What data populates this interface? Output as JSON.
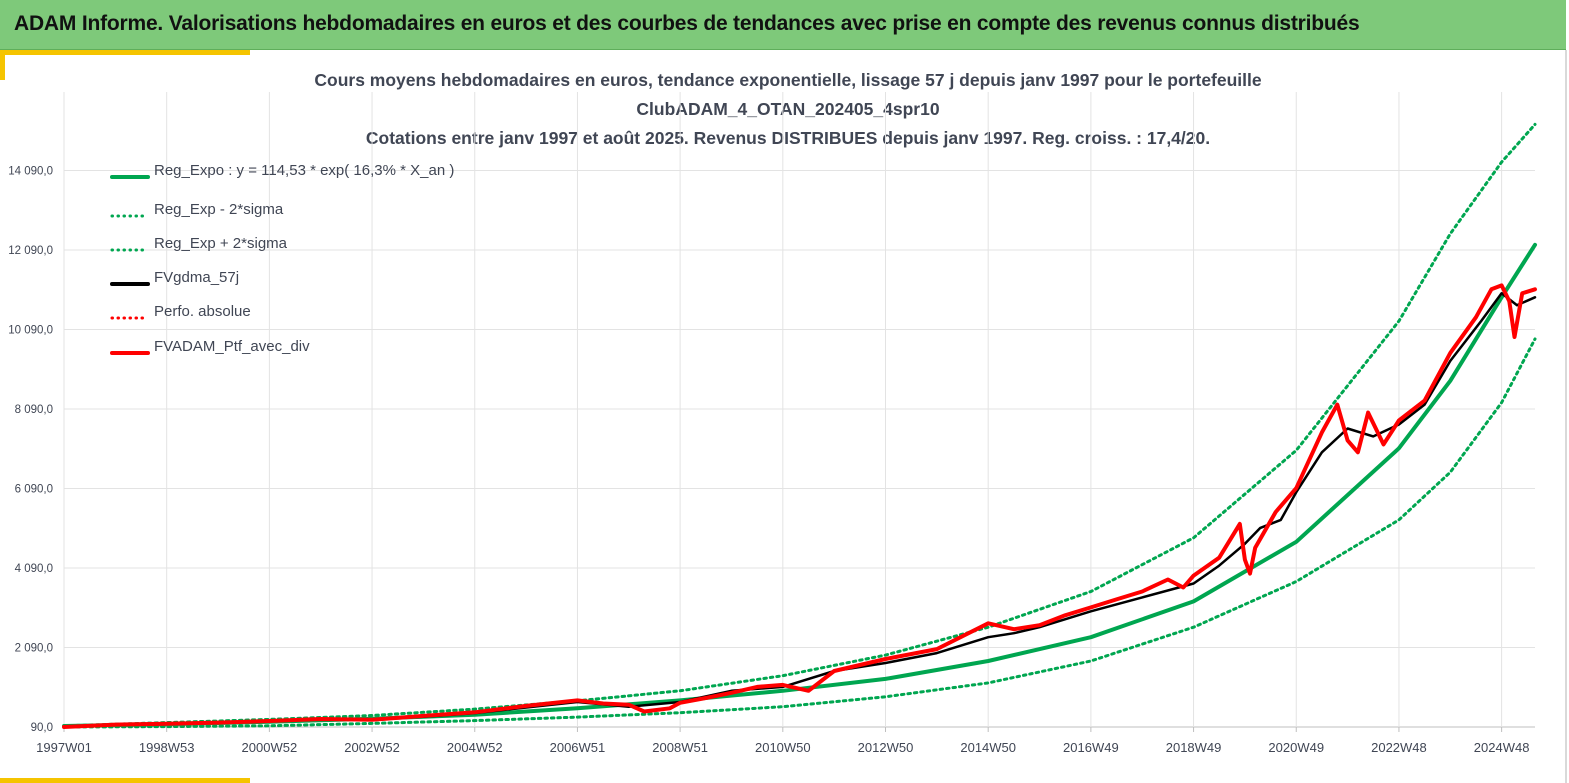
{
  "banner": {
    "title": "ADAM Informe. Valorisations hebdomadaires en euros et des courbes de tendances avec prise en compte des revenus connus distribués"
  },
  "colors": {
    "banner_bg": "#7ec97a",
    "accent": "#f5c400",
    "regression": "#00a650",
    "smoothed": "#000000",
    "portfolio": "#ff0000"
  },
  "chart_data": {
    "type": "line",
    "title_lines": [
      "Cours moyens hebdomadaires  en euros, tendance exponentielle, lissage 57 j depuis janv 1997 pour le portefeuille",
      "ClubADAM_4_OTAN_202405_4spr10",
      "Cotations  entre janv 1997 et août  2025. Revenus DISTRIBUES depuis janv 1997. Reg. croiss. : 17,4/20."
    ],
    "x_tick_labels": [
      "1997W01",
      "1998W53",
      "2000W52",
      "2002W52",
      "2004W52",
      "2006W51",
      "2008W51",
      "2010W50",
      "2012W50",
      "2014W50",
      "2016W49",
      "2018W49",
      "2020W49",
      "2022W48",
      "2024W48"
    ],
    "x_tick_years": [
      1997.0,
      1999.0,
      2001.0,
      2003.0,
      2005.0,
      2007.0,
      2009.0,
      2011.0,
      2013.0,
      2015.0,
      2017.0,
      2019.0,
      2021.0,
      2023.0,
      2025.0
    ],
    "xlim": [
      1997.0,
      2025.65
    ],
    "y_tick_labels": [
      "90,0",
      "2 090,0",
      "4 090,0",
      "6 090,0",
      "8 090,0",
      "10 090,0",
      "12 090,0",
      "14 090,0"
    ],
    "y_tick_values": [
      90,
      2090,
      4090,
      6090,
      8090,
      10090,
      12090,
      14090
    ],
    "ylim": [
      90,
      15000
    ],
    "grid": true,
    "legend_position": "top-left",
    "legend": [
      {
        "label": "Reg_Expo : y = 114,53 * exp( 16,3% *  X_an )",
        "color": "#00a650",
        "style": "solid"
      },
      {
        "label": "Reg_Exp - 2*sigma",
        "color": "#00a650",
        "style": "dotted"
      },
      {
        "label": "Reg_Exp + 2*sigma",
        "color": "#00a650",
        "style": "dotted"
      },
      {
        "label": "FVgdma_57j",
        "color": "#000000",
        "style": "solid"
      },
      {
        "label": "Perfo. absolue",
        "color": "#ff0000",
        "style": "dotted"
      },
      {
        "label": "FVADAM_Ptf_avec_div",
        "color": "#ff0000",
        "style": "solid"
      }
    ],
    "series": [
      {
        "name": "Reg_Expo : y = 114,53 * exp( 16,3% *  X_an )",
        "color": "#00a650",
        "style": "solid",
        "width": 4,
        "x": [
          1997,
          1999,
          2001,
          2003,
          2005,
          2007,
          2009,
          2011,
          2013,
          2015,
          2017,
          2019,
          2021,
          2023,
          2024,
          2025,
          2025.65
        ],
        "y": [
          115,
          160,
          220,
          300,
          400,
          560,
          760,
          1000,
          1300,
          1750,
          2350,
          3250,
          4750,
          7100,
          8800,
          10900,
          12220
        ]
      },
      {
        "name": "Reg_Exp - 2*sigma",
        "color": "#00a650",
        "style": "dotted",
        "width": 3,
        "x": [
          1997,
          1999,
          2001,
          2003,
          2005,
          2007,
          2009,
          2011,
          2013,
          2015,
          2017,
          2019,
          2021,
          2023,
          2024,
          2025,
          2025.65
        ],
        "y": [
          90,
          100,
          120,
          180,
          250,
          340,
          450,
          600,
          850,
          1200,
          1750,
          2600,
          3750,
          5300,
          6500,
          8250,
          9850
        ]
      },
      {
        "name": "Reg_Exp + 2*sigma",
        "color": "#00a650",
        "style": "dotted",
        "width": 3,
        "x": [
          1997,
          1999,
          2001,
          2003,
          2005,
          2007,
          2009,
          2011,
          2013,
          2015,
          2017,
          2019,
          2021,
          2023,
          2024,
          2025,
          2025.65
        ],
        "y": [
          120,
          200,
          280,
          380,
          540,
          750,
          1000,
          1380,
          1900,
          2600,
          3500,
          4850,
          7050,
          10300,
          12500,
          14300,
          15250
        ]
      },
      {
        "name": "FVgdma_57j",
        "color": "#000000",
        "style": "solid",
        "width": 2.5,
        "x": [
          1997,
          1998,
          1999,
          2000,
          2001,
          2002,
          2003,
          2004,
          2005,
          2006,
          2007,
          2008,
          2009,
          2010,
          2011,
          2012,
          2013,
          2014,
          2015,
          2015.5,
          2016,
          2017,
          2018,
          2019,
          2019.5,
          2020,
          2020.3,
          2020.7,
          2021,
          2021.5,
          2022,
          2022.5,
          2023,
          2023.5,
          2024,
          2024.6,
          2025,
          2025.3,
          2025.65
        ],
        "y": [
          90,
          140,
          160,
          190,
          230,
          280,
          280,
          350,
          440,
          580,
          720,
          600,
          720,
          1000,
          1100,
          1500,
          1700,
          1950,
          2350,
          2450,
          2600,
          3000,
          3350,
          3700,
          4150,
          4700,
          5100,
          5300,
          6000,
          7000,
          7600,
          7400,
          7700,
          8200,
          9300,
          10300,
          11000,
          10700,
          10900
        ]
      },
      {
        "name": "Perfo. absolue",
        "color": "#ff0000",
        "style": "dotted",
        "width": 2,
        "x": [
          1997,
          1998,
          1999,
          2000,
          2001,
          2002,
          2003,
          2004,
          2005,
          2006,
          2007,
          2007.5,
          2008,
          2008.3,
          2008.8,
          2009,
          2009.5,
          2010,
          2010.5,
          2011,
          2011.5,
          2012,
          2013,
          2014,
          2015,
          2015.5,
          2016,
          2016.5,
          2017,
          2017.5,
          2018,
          2018.5,
          2018.8,
          2019,
          2019.5,
          2019.9,
          2020,
          2020.1,
          2020.2,
          2020.6,
          2021,
          2021.5,
          2021.8,
          2022,
          2022.2,
          2022.4,
          2022.7,
          2023,
          2023.5,
          2024,
          2024.5,
          2024.8,
          2025,
          2025.15,
          2025.25,
          2025.4,
          2025.65
        ],
        "y": [
          90,
          150,
          170,
          200,
          240,
          290,
          270,
          370,
          460,
          620,
          760,
          680,
          650,
          480,
          560,
          700,
          820,
          950,
          1100,
          1150,
          1000,
          1500,
          1800,
          2050,
          2700,
          2550,
          2650,
          2900,
          3100,
          3300,
          3500,
          3800,
          3600,
          3900,
          4350,
          5200,
          4300,
          3950,
          4600,
          5500,
          6100,
          7500,
          8200,
          7300,
          7000,
          8000,
          7200,
          7800,
          8300,
          9500,
          10400,
          11100,
          11200,
          10800,
          9900,
          11000,
          11100
        ]
      },
      {
        "name": "FVADAM_Ptf_avec_div",
        "color": "#ff0000",
        "style": "solid",
        "width": 4,
        "x": [
          1997,
          1998,
          1999,
          2000,
          2001,
          2002,
          2003,
          2004,
          2005,
          2006,
          2007,
          2007.5,
          2008,
          2008.3,
          2008.8,
          2009,
          2009.5,
          2010,
          2010.5,
          2011,
          2011.5,
          2012,
          2013,
          2014,
          2015,
          2015.5,
          2016,
          2016.5,
          2017,
          2017.5,
          2018,
          2018.5,
          2018.8,
          2019,
          2019.5,
          2019.9,
          2020,
          2020.1,
          2020.2,
          2020.6,
          2021,
          2021.5,
          2021.8,
          2022,
          2022.2,
          2022.4,
          2022.7,
          2023,
          2023.5,
          2024,
          2024.5,
          2024.8,
          2025,
          2025.15,
          2025.25,
          2025.4,
          2025.65
        ],
        "y": [
          90,
          150,
          170,
          200,
          240,
          290,
          270,
          370,
          460,
          620,
          760,
          680,
          650,
          480,
          560,
          700,
          820,
          950,
          1100,
          1150,
          1000,
          1500,
          1800,
          2050,
          2700,
          2550,
          2650,
          2900,
          3100,
          3300,
          3500,
          3800,
          3600,
          3900,
          4350,
          5200,
          4300,
          3950,
          4600,
          5500,
          6100,
          7500,
          8200,
          7300,
          7000,
          8000,
          7200,
          7800,
          8300,
          9500,
          10400,
          11100,
          11200,
          10800,
          9900,
          11000,
          11100
        ]
      }
    ]
  }
}
